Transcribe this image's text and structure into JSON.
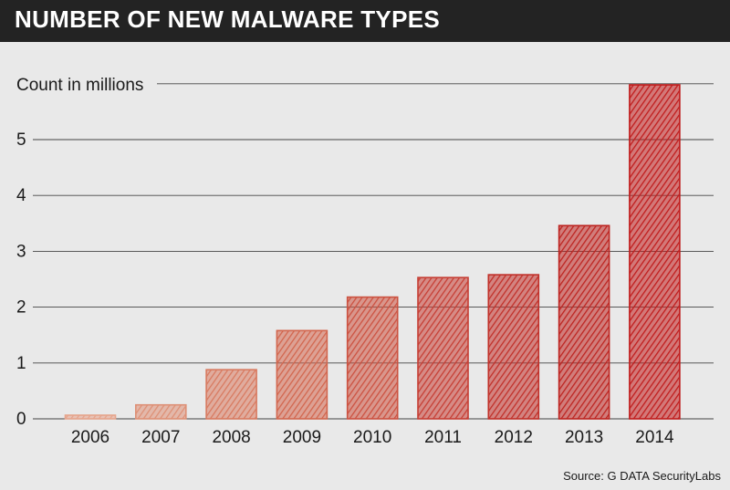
{
  "header": {
    "title": "NUMBER OF NEW MALWARE TYPES"
  },
  "source": "Source: G DATA SecurityLabs",
  "chart_data": {
    "type": "bar",
    "title": "NUMBER OF NEW MALWARE TYPES",
    "ylabel": "Count in millions",
    "xlabel": "",
    "categories": [
      "2006",
      "2007",
      "2008",
      "2009",
      "2010",
      "2011",
      "2012",
      "2013",
      "2014"
    ],
    "values": [
      0.05,
      0.25,
      0.88,
      1.58,
      2.18,
      2.53,
      2.58,
      3.46,
      5.98
    ],
    "ylim": [
      0,
      6
    ],
    "yticks": [
      0,
      1,
      2,
      3,
      4,
      5
    ],
    "grid": true,
    "colors": [
      "#e6a48c",
      "#de9076",
      "#d87a60",
      "#d2664e",
      "#cc5140",
      "#c63e34",
      "#c13029",
      "#bd2420",
      "#c01c1c"
    ]
  }
}
